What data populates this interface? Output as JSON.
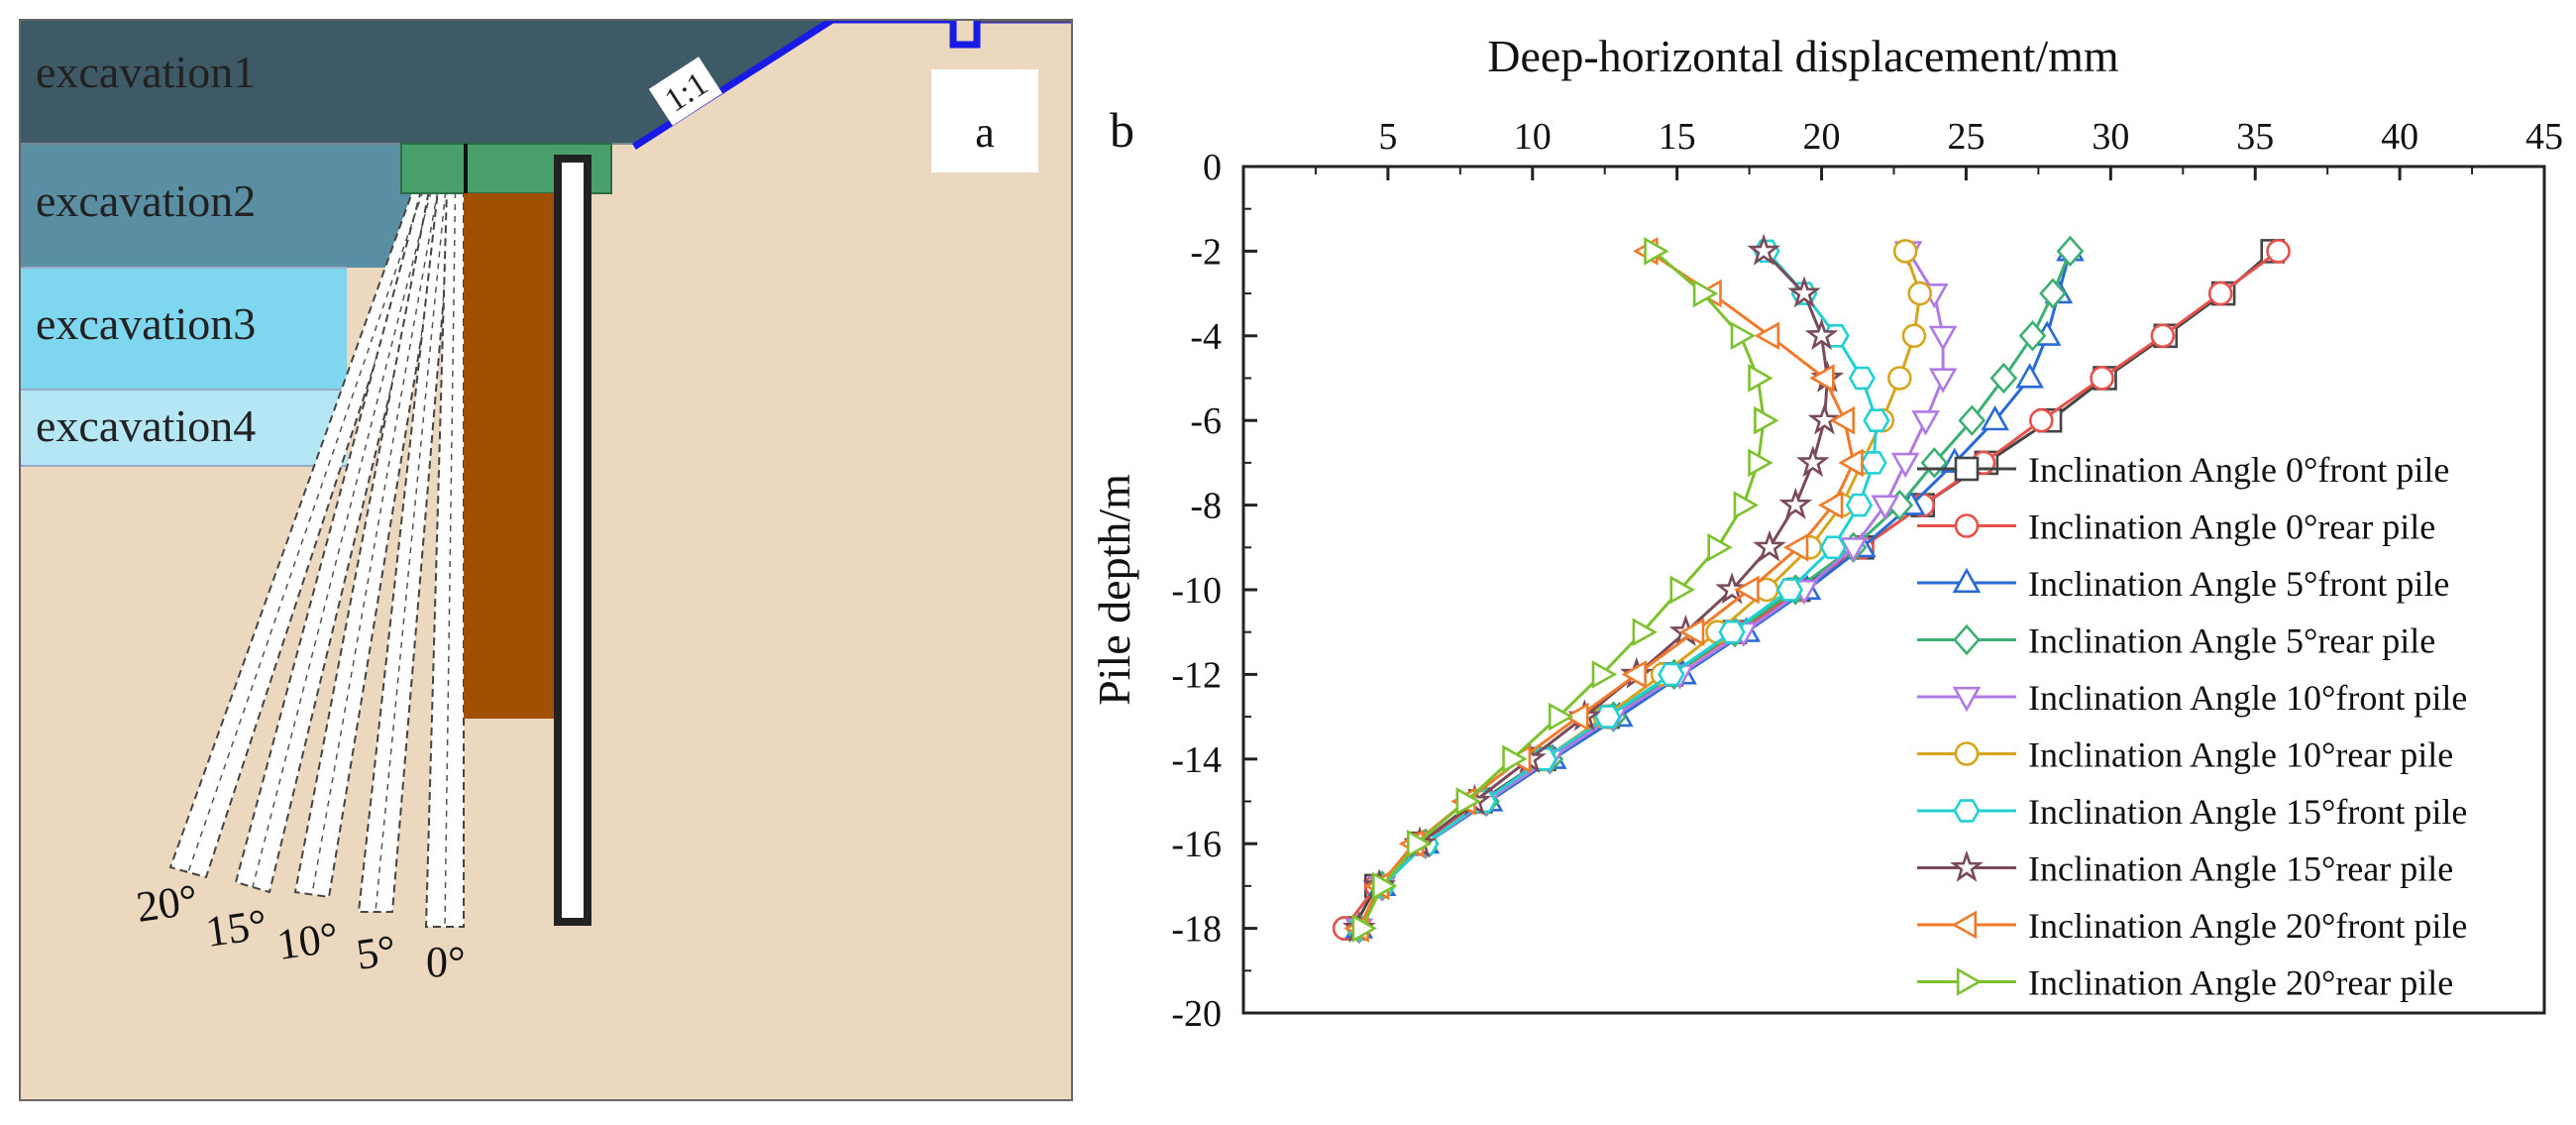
{
  "panel_a": {
    "label": "a",
    "layers": [
      "excavation1",
      "excavation2",
      "excavation3",
      "excavation4"
    ],
    "slope_label": "1:1",
    "angle_labels": [
      "20°",
      "15°",
      "10°",
      "5°",
      "0°"
    ],
    "colors": {
      "excavation1": "#3e5a66",
      "excavation2": "#5a8ea3",
      "excavation3": "#7fd6ef",
      "excavation4": "#b5e6f3",
      "soil": "#ecd8be",
      "cap": "#4aa06a",
      "wall": "#a05000",
      "slope_line": "#1a1ae6"
    }
  },
  "panel_b_label": "b",
  "chart_data": {
    "type": "line",
    "title": "",
    "xlabel": "Deep-horizontal displacement/mm",
    "ylabel": "Pile depth/m",
    "xlim": [
      0,
      45
    ],
    "ylim": [
      -20,
      0
    ],
    "x_ticks": [
      5,
      10,
      15,
      20,
      25,
      30,
      35,
      40,
      45
    ],
    "y_ticks": [
      0,
      -2,
      -4,
      -6,
      -8,
      -10,
      -12,
      -14,
      -16,
      -18,
      -20
    ],
    "x_tick_labels": [
      "5",
      "10",
      "15",
      "20",
      "25",
      "30",
      "35",
      "40",
      "45"
    ],
    "y_tick_labels": [
      "0",
      "-2",
      "-4",
      "-6",
      "-8",
      "-10",
      "-12",
      "-14",
      "-16",
      "-18",
      "-20"
    ],
    "x_axis_position": "top",
    "legend_position": "right",
    "depths": [
      -2,
      -3,
      -4,
      -5,
      -6,
      -7,
      -8,
      -9,
      -10,
      -11,
      -12,
      -13,
      -14,
      -15,
      -16,
      -17,
      -18
    ],
    "series": [
      {
        "name": "Inclination Angle 0°front pile",
        "color": "#444444",
        "marker": "square",
        "values": [
          35.6,
          33.9,
          31.9,
          29.8,
          27.9,
          25.7,
          23.5,
          21.4,
          19.2,
          17.0,
          14.8,
          12.6,
          10.4,
          8.2,
          6.1,
          4.6,
          3.8
        ]
      },
      {
        "name": "Inclination Angle 0°rear pile",
        "color": "#e8504a",
        "marker": "circle",
        "values": [
          35.8,
          33.8,
          31.8,
          29.7,
          27.6,
          25.6,
          23.5,
          21.4,
          19.3,
          17.1,
          14.9,
          12.7,
          10.5,
          8.3,
          6.1,
          4.6,
          3.5
        ]
      },
      {
        "name": "Inclination Angle 5°front pile",
        "color": "#2a6ad6",
        "marker": "triangle-up",
        "values": [
          28.6,
          28.2,
          27.8,
          27.2,
          26.0,
          24.6,
          23.1,
          21.4,
          19.5,
          17.4,
          15.2,
          13.0,
          10.7,
          8.5,
          6.3,
          4.8,
          4.0
        ]
      },
      {
        "name": "Inclination Angle 5°rear pile",
        "color": "#3cb073",
        "marker": "diamond",
        "values": [
          28.6,
          28.0,
          27.3,
          26.3,
          25.2,
          23.9,
          22.7,
          21.1,
          19.1,
          17.0,
          14.9,
          12.8,
          10.6,
          8.4,
          6.3,
          4.8,
          4.0
        ]
      },
      {
        "name": "Inclination Angle 10°front pile",
        "color": "#b07ae6",
        "marker": "triangle-down",
        "values": [
          23.0,
          23.9,
          24.2,
          24.2,
          23.6,
          22.9,
          22.2,
          21.1,
          19.4,
          17.3,
          15.1,
          12.8,
          10.6,
          8.4,
          6.3,
          4.8,
          4.0
        ]
      },
      {
        "name": "Inclination Angle 10°rear pile",
        "color": "#d6a51e",
        "marker": "circle",
        "values": [
          22.9,
          23.4,
          23.2,
          22.7,
          22.1,
          21.4,
          20.7,
          19.6,
          18.1,
          16.4,
          14.5,
          12.5,
          10.4,
          8.3,
          6.3,
          4.8,
          4.0
        ]
      },
      {
        "name": "Inclination Angle 15°front pile",
        "color": "#22cfd2",
        "marker": "hexagon",
        "values": [
          18.1,
          19.4,
          20.5,
          21.4,
          21.9,
          21.8,
          21.3,
          20.4,
          18.9,
          16.9,
          14.8,
          12.6,
          10.4,
          8.3,
          6.3,
          4.8,
          4.0
        ]
      },
      {
        "name": "Inclination Angle 15°rear pile",
        "color": "#7a4a5a",
        "marker": "star",
        "values": [
          18.0,
          19.4,
          20.0,
          20.2,
          20.1,
          19.7,
          19.1,
          18.2,
          16.9,
          15.3,
          13.6,
          11.8,
          9.9,
          8.0,
          6.1,
          4.7,
          4.0
        ]
      },
      {
        "name": "Inclination Angle 20°front pile",
        "color": "#f07a2a",
        "marker": "triangle-left",
        "values": [
          14.0,
          16.2,
          18.2,
          20.1,
          20.8,
          21.1,
          20.4,
          19.2,
          17.5,
          15.6,
          13.6,
          11.6,
          9.6,
          7.7,
          5.9,
          4.7,
          4.0
        ]
      },
      {
        "name": "Inclination Angle 20°rear pile",
        "color": "#7cc22e",
        "marker": "triangle-right",
        "values": [
          14.2,
          15.9,
          17.2,
          17.8,
          18.0,
          17.8,
          17.3,
          16.4,
          15.1,
          13.8,
          12.4,
          10.9,
          9.3,
          7.7,
          6.0,
          4.8,
          4.1
        ]
      }
    ]
  }
}
